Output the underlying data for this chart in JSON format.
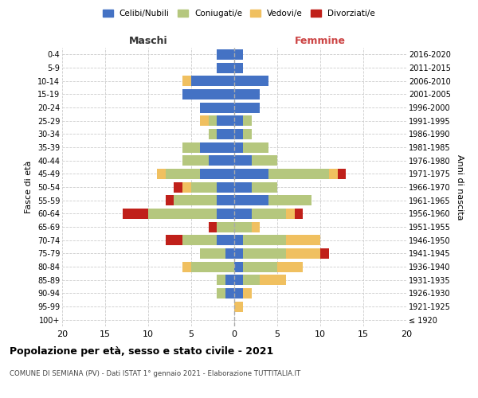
{
  "age_groups": [
    "100+",
    "95-99",
    "90-94",
    "85-89",
    "80-84",
    "75-79",
    "70-74",
    "65-69",
    "60-64",
    "55-59",
    "50-54",
    "45-49",
    "40-44",
    "35-39",
    "30-34",
    "25-29",
    "20-24",
    "15-19",
    "10-14",
    "5-9",
    "0-4"
  ],
  "birth_years": [
    "≤ 1920",
    "1921-1925",
    "1926-1930",
    "1931-1935",
    "1936-1940",
    "1941-1945",
    "1946-1950",
    "1951-1955",
    "1956-1960",
    "1961-1965",
    "1966-1970",
    "1971-1975",
    "1976-1980",
    "1981-1985",
    "1986-1990",
    "1991-1995",
    "1996-2000",
    "2001-2005",
    "2006-2010",
    "2011-2015",
    "2016-2020"
  ],
  "maschi": {
    "celibi": [
      0,
      0,
      1,
      1,
      0,
      1,
      2,
      0,
      2,
      2,
      2,
      4,
      3,
      4,
      2,
      2,
      4,
      6,
      5,
      2,
      2
    ],
    "coniugati": [
      0,
      0,
      1,
      1,
      5,
      3,
      4,
      2,
      8,
      5,
      3,
      4,
      3,
      2,
      1,
      1,
      0,
      0,
      0,
      0,
      0
    ],
    "vedovi": [
      0,
      0,
      0,
      0,
      1,
      0,
      0,
      0,
      0,
      0,
      1,
      1,
      0,
      0,
      0,
      1,
      0,
      0,
      1,
      0,
      0
    ],
    "divorziati": [
      0,
      0,
      0,
      0,
      0,
      0,
      2,
      1,
      3,
      1,
      1,
      0,
      0,
      0,
      0,
      0,
      0,
      0,
      0,
      0,
      0
    ]
  },
  "femmine": {
    "nubili": [
      0,
      0,
      1,
      1,
      1,
      1,
      1,
      0,
      2,
      4,
      2,
      4,
      2,
      1,
      1,
      1,
      3,
      3,
      4,
      1,
      1
    ],
    "coniugate": [
      0,
      0,
      0,
      2,
      4,
      5,
      5,
      2,
      4,
      5,
      3,
      7,
      3,
      3,
      1,
      1,
      0,
      0,
      0,
      0,
      0
    ],
    "vedove": [
      0,
      1,
      1,
      3,
      3,
      4,
      4,
      1,
      1,
      0,
      0,
      1,
      0,
      0,
      0,
      0,
      0,
      0,
      0,
      0,
      0
    ],
    "divorziate": [
      0,
      0,
      0,
      0,
      0,
      1,
      0,
      0,
      1,
      0,
      0,
      1,
      0,
      0,
      0,
      0,
      0,
      0,
      0,
      0,
      0
    ]
  },
  "colors": {
    "celibi_nubili": "#4472C4",
    "coniugati": "#B5C77E",
    "vedovi": "#F0C060",
    "divorziati": "#C0201A"
  },
  "xlim": 20,
  "title": "Popolazione per età, sesso e stato civile - 2021",
  "subtitle": "COMUNE DI SEMIANA (PV) - Dati ISTAT 1° gennaio 2021 - Elaborazione TUTTITALIA.IT",
  "ylabel_left": "Fasce di età",
  "ylabel_right": "Anni di nascita",
  "xlabel_left": "Maschi",
  "xlabel_right": "Femmine",
  "legend_labels": [
    "Celibi/Nubili",
    "Coniugati/e",
    "Vedovi/e",
    "Divorziati/e"
  ],
  "background_color": "#ffffff",
  "grid_color": "#cccccc",
  "maschi_label_color": "#333333",
  "femmine_label_color": "#CC4444"
}
